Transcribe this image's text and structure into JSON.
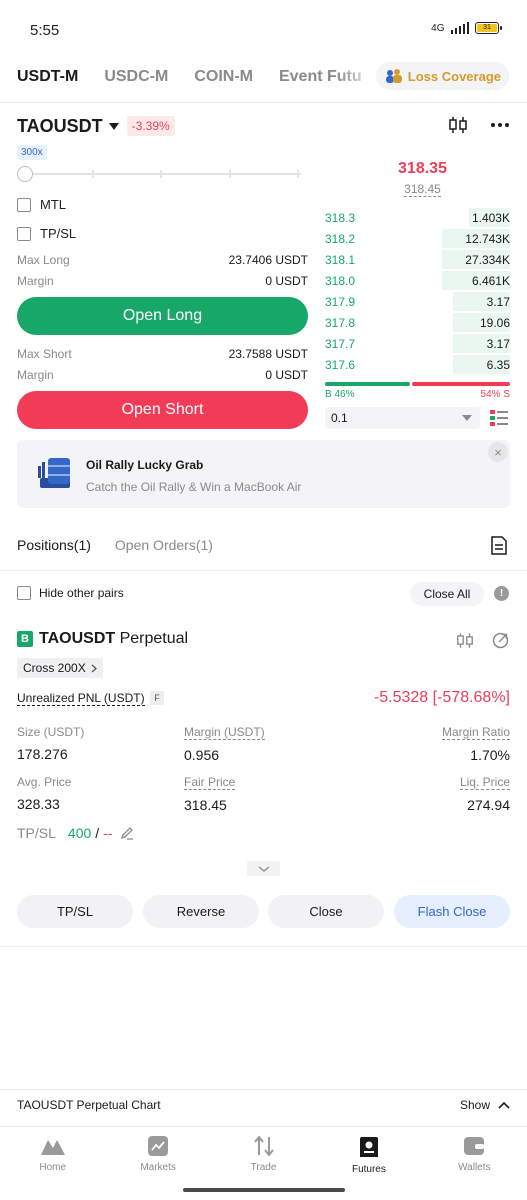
{
  "status": {
    "time": "5:55",
    "network": "4G",
    "battery": "31"
  },
  "top_tabs": [
    {
      "label": "USDT-M",
      "active": true
    },
    {
      "label": "USDC-M",
      "active": false
    },
    {
      "label": "COIN-M",
      "active": false
    },
    {
      "label": "Event Futu",
      "active": false
    }
  ],
  "loss_coverage": "Loss Coverage",
  "pair": {
    "name": "TAOUSDT",
    "change": "-3.39%",
    "leverage": "300x"
  },
  "form": {
    "mtl_label": "MTL",
    "tpsl_label": "TP/SL",
    "max_long_label": "Max Long",
    "max_long_value": "23.7406 USDT",
    "margin_label_long": "Margin",
    "margin_value_long": "0 USDT",
    "open_long": "Open Long",
    "max_short_label": "Max Short",
    "max_short_value": "23.7588 USDT",
    "margin_label_short": "Margin",
    "margin_value_short": "0 USDT",
    "open_short": "Open Short"
  },
  "orderbook": {
    "last_price": "318.35",
    "mark_price": "318.45",
    "rows": [
      {
        "price": "318.3",
        "qty": "1.403K",
        "depth": 0.22
      },
      {
        "price": "318.2",
        "qty": "12.743K",
        "depth": 0.37
      },
      {
        "price": "318.1",
        "qty": "27.334K",
        "depth": 0.37
      },
      {
        "price": "318.0",
        "qty": "6.461K",
        "depth": 0.37
      },
      {
        "price": "317.9",
        "qty": "3.17",
        "depth": 0.31
      },
      {
        "price": "317.8",
        "qty": "19.06",
        "depth": 0.31
      },
      {
        "price": "317.7",
        "qty": "3.17",
        "depth": 0.31
      },
      {
        "price": "317.6",
        "qty": "6.35",
        "depth": 0.31
      }
    ],
    "buy_ratio_label": "B 46%",
    "sell_ratio_label": "54% S",
    "buy_ratio": 0.46,
    "depth_step": "0.1"
  },
  "promo": {
    "title": "Oil Rally Lucky Grab",
    "subtitle": "Catch the Oil Rally & Win a MacBook Air",
    "close": "×"
  },
  "positions": {
    "tab_positions": "Positions(1)",
    "tab_open_orders": "Open Orders(1)",
    "hide_other_pairs": "Hide other pairs",
    "close_all": "Close All",
    "side_badge": "B",
    "symbol": "TAOUSDT",
    "contract": "Perpetual",
    "cross": "Cross 200X",
    "upnl_label": "Unrealized PNL (USDT)",
    "upnl_badge": "F",
    "upnl_value": "-5.5328 [-578.68%]",
    "size_label": "Size (USDT)",
    "size_value": "178.276",
    "margin_label": "Margin (USDT)",
    "margin_value": "0.956",
    "margin_ratio_label": "Margin Ratio",
    "margin_ratio_value": "1.70%",
    "avg_label": "Avg. Price",
    "avg_value": "328.33",
    "fair_label": "Fair Price",
    "fair_value": "318.45",
    "liq_label": "Liq. Price",
    "liq_value": "274.94",
    "tpsl_label": "TP/SL",
    "tp_value": "400",
    "sl_value": "--",
    "btn_tpsl": "TP/SL",
    "btn_reverse": "Reverse",
    "btn_close": "Close",
    "btn_flash_close": "Flash Close"
  },
  "chart_bar": {
    "title": "TAOUSDT Perpetual Chart",
    "show": "Show"
  },
  "nav": [
    {
      "label": "Home",
      "icon": "home-icon",
      "active": false
    },
    {
      "label": "Markets",
      "icon": "markets-icon",
      "active": false
    },
    {
      "label": "Trade",
      "icon": "trade-icon",
      "active": false
    },
    {
      "label": "Futures",
      "icon": "futures-icon",
      "active": true
    },
    {
      "label": "Wallets",
      "icon": "wallets-icon",
      "active": false
    }
  ],
  "colors": {
    "green": "#17a869",
    "red": "#f23c57",
    "blue": "#3467c8",
    "gold": "#d59b2e"
  }
}
